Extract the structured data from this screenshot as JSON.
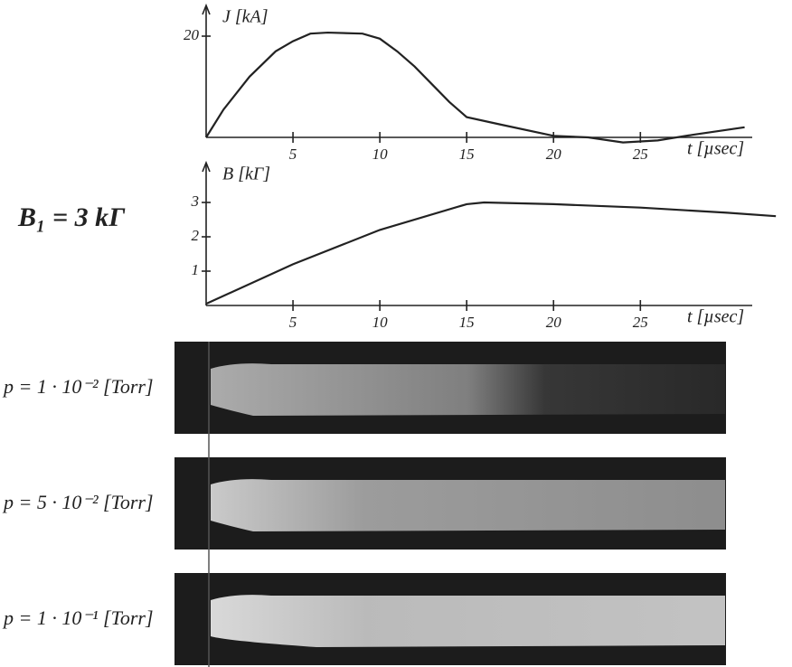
{
  "chart_data": [
    {
      "type": "line",
      "ylabel": "J [kA]",
      "xlabel": "t [µsec]",
      "x": [
        0,
        1,
        2.5,
        4,
        5,
        6,
        7,
        9,
        10,
        11,
        12,
        13,
        14,
        15,
        17,
        20,
        22,
        24,
        26,
        28,
        31
      ],
      "values": [
        0,
        5.5,
        12,
        17,
        19,
        20.5,
        20.7,
        20.5,
        19.5,
        17,
        14,
        10.5,
        7,
        4,
        2.5,
        0.3,
        0,
        -1,
        -0.6,
        0.5,
        2
      ],
      "color": "#222222",
      "xlim": [
        0,
        33
      ],
      "ylim": [
        0,
        25
      ],
      "xticks": [
        5,
        10,
        15,
        20,
        25
      ],
      "yticks": [
        20
      ]
    },
    {
      "type": "line",
      "ylabel": "B [kΓ]",
      "xlabel": "t [µsec]",
      "annotation": "B₁ = 3 kΓ",
      "x": [
        0,
        5,
        10,
        15,
        16,
        20,
        25,
        30,
        32.8
      ],
      "values": [
        0.05,
        1.2,
        2.2,
        2.95,
        3.0,
        2.95,
        2.85,
        2.7,
        2.6
      ],
      "color": "#222222",
      "xlim": [
        0,
        33
      ],
      "ylim": [
        0,
        4
      ],
      "xticks": [
        5,
        10,
        15,
        20,
        25
      ],
      "yticks": [
        1,
        2,
        3
      ]
    }
  ],
  "photos": [
    {
      "label": "p = 1 · 10⁻² [Torr]"
    },
    {
      "label": "p = 5 · 10⁻² [Torr]"
    },
    {
      "label": "p = 1 · 10⁻¹ [Torr]"
    }
  ]
}
